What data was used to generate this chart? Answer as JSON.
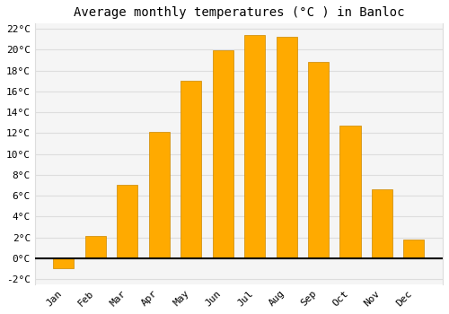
{
  "title": "Average monthly temperatures (°C ) in Banloc",
  "months": [
    "Jan",
    "Feb",
    "Mar",
    "Apr",
    "May",
    "Jun",
    "Jul",
    "Aug",
    "Sep",
    "Oct",
    "Nov",
    "Dec"
  ],
  "values": [
    -1.0,
    2.1,
    7.0,
    12.1,
    17.0,
    19.9,
    21.4,
    21.2,
    18.8,
    12.7,
    6.6,
    1.8
  ],
  "bar_color": "#FFAA00",
  "bar_edge_color": "#CC8800",
  "background_color": "#ffffff",
  "plot_bg_color": "#f5f5f5",
  "grid_color": "#dddddd",
  "ylim": [
    -2.5,
    22.5
  ],
  "yticks": [
    -2,
    0,
    2,
    4,
    6,
    8,
    10,
    12,
    14,
    16,
    18,
    20,
    22
  ],
  "title_fontsize": 10,
  "tick_fontsize": 8,
  "font_family": "monospace",
  "bar_width": 0.65
}
